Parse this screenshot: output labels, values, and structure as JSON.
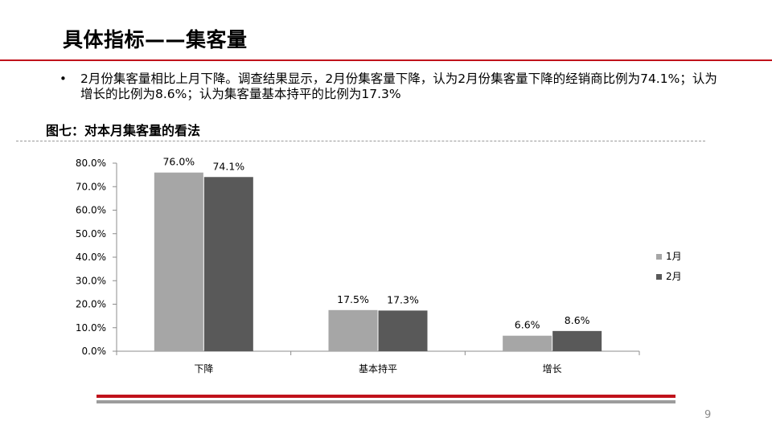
{
  "slide": {
    "title": "具体指标——集客量",
    "bullet_marker": "•",
    "bullet_text": "2月份集客量相比上月下降。调查结果显示，2月份集客量下降，认为2月份集客量下降的经销商比例为74.1%；认为增长的比例为8.6%；认为集客量基本持平的比例为17.3%",
    "figure_title": "图七：对本月集客量的看法",
    "page_number": "9",
    "colors": {
      "accent_red": "#c0121b",
      "rule_gray": "#9c9c9c"
    }
  },
  "chart_data": {
    "type": "bar",
    "categories": [
      "下降",
      "基本持平",
      "增长"
    ],
    "series": [
      {
        "name": "1月",
        "values": [
          76.0,
          17.5,
          6.6
        ],
        "labels": [
          "76.0%",
          "17.5%",
          "6.6%"
        ],
        "color": "#a6a6a6"
      },
      {
        "name": "2月",
        "values": [
          74.1,
          17.3,
          8.6
        ],
        "labels": [
          "74.1%",
          "17.3%",
          "8.6%"
        ],
        "color": "#595959"
      }
    ],
    "ylim": [
      0,
      80
    ],
    "yticks": [
      0,
      10,
      20,
      30,
      40,
      50,
      60,
      70,
      80
    ],
    "ytick_labels": [
      "0.0%",
      "10.0%",
      "20.0%",
      "30.0%",
      "40.0%",
      "50.0%",
      "60.0%",
      "70.0%",
      "80.0%"
    ],
    "xlabel": "",
    "ylabel": "",
    "grid": false,
    "legend": "right"
  }
}
